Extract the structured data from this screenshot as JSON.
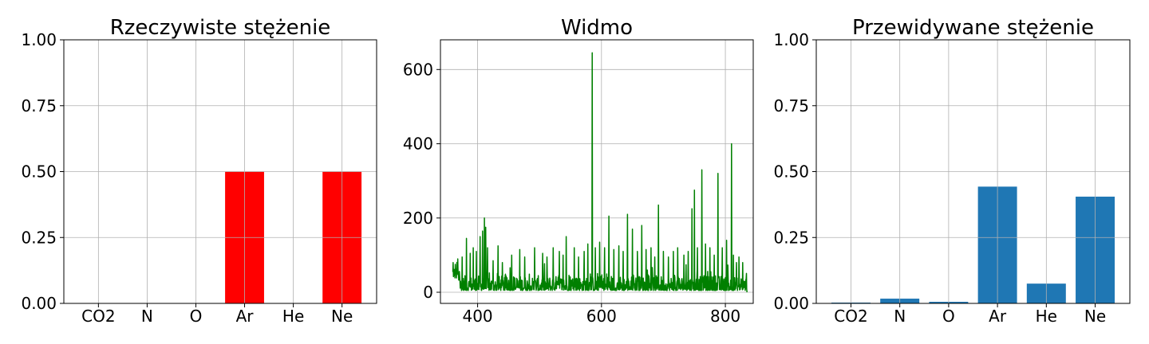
{
  "chart_data": [
    {
      "type": "bar",
      "title": "Rzeczywiste stężenie",
      "categories": [
        "CO2",
        "N",
        "O",
        "Ar",
        "He",
        "Ne"
      ],
      "values": [
        0,
        0,
        0,
        0.5,
        0,
        0.5
      ],
      "ylim": [
        0,
        1
      ],
      "yticks": [
        0,
        0.25,
        0.5,
        0.75,
        1.0
      ],
      "ytick_labels": [
        "0.00",
        "0.25",
        "0.50",
        "0.75",
        "1.00"
      ],
      "grid": true,
      "color": "#ff0000"
    },
    {
      "type": "line",
      "title": "Widmo",
      "xlim": [
        340,
        845
      ],
      "ylim": [
        -30,
        680
      ],
      "xticks": [
        400,
        600,
        800
      ],
      "xtick_labels": [
        "400",
        "600",
        "800"
      ],
      "yticks": [
        0,
        200,
        400,
        600
      ],
      "ytick_labels": [
        "0",
        "200",
        "400",
        "600"
      ],
      "grid": true,
      "color": "#008000",
      "x_range": [
        360,
        835
      ],
      "baseline_noise": [
        5,
        45
      ],
      "peaks": [
        [
          364,
          75
        ],
        [
          368,
          90
        ],
        [
          375,
          95
        ],
        [
          382,
          145
        ],
        [
          388,
          105
        ],
        [
          393,
          120
        ],
        [
          398,
          110
        ],
        [
          404,
          150
        ],
        [
          408,
          165
        ],
        [
          411,
          200
        ],
        [
          413,
          175
        ],
        [
          416,
          120
        ],
        [
          425,
          85
        ],
        [
          433,
          125
        ],
        [
          440,
          80
        ],
        [
          455,
          100
        ],
        [
          468,
          115
        ],
        [
          476,
          95
        ],
        [
          492,
          120
        ],
        [
          505,
          105
        ],
        [
          512,
          95
        ],
        [
          522,
          120
        ],
        [
          532,
          110
        ],
        [
          538,
          100
        ],
        [
          543,
          150
        ],
        [
          556,
          120
        ],
        [
          563,
          95
        ],
        [
          572,
          110
        ],
        [
          578,
          130
        ],
        [
          585,
          645
        ],
        [
          590,
          120
        ],
        [
          597,
          135
        ],
        [
          605,
          120
        ],
        [
          612,
          205
        ],
        [
          620,
          115
        ],
        [
          628,
          125
        ],
        [
          635,
          110
        ],
        [
          642,
          210
        ],
        [
          650,
          170
        ],
        [
          658,
          110
        ],
        [
          665,
          180
        ],
        [
          672,
          115
        ],
        [
          680,
          120
        ],
        [
          686,
          95
        ],
        [
          692,
          235
        ],
        [
          700,
          110
        ],
        [
          708,
          95
        ],
        [
          716,
          110
        ],
        [
          723,
          120
        ],
        [
          733,
          100
        ],
        [
          740,
          110
        ],
        [
          746,
          225
        ],
        [
          750,
          275
        ],
        [
          755,
          120
        ],
        [
          762,
          330
        ],
        [
          768,
          130
        ],
        [
          775,
          120
        ],
        [
          782,
          100
        ],
        [
          788,
          320
        ],
        [
          795,
          120
        ],
        [
          802,
          140
        ],
        [
          810,
          400
        ],
        [
          813,
          100
        ],
        [
          818,
          80
        ],
        [
          822,
          95
        ],
        [
          828,
          80
        ]
      ]
    },
    {
      "type": "bar",
      "title": "Przewidywane stężenie",
      "categories": [
        "CO2",
        "N",
        "O",
        "Ar",
        "He",
        "Ne"
      ],
      "values": [
        0.003,
        0.018,
        0.006,
        0.443,
        0.075,
        0.405
      ],
      "ylim": [
        0,
        1
      ],
      "yticks": [
        0,
        0.25,
        0.5,
        0.75,
        1.0
      ],
      "ytick_labels": [
        "0.00",
        "0.25",
        "0.50",
        "0.75",
        "1.00"
      ],
      "grid": true,
      "color": "#1f77b4"
    }
  ]
}
